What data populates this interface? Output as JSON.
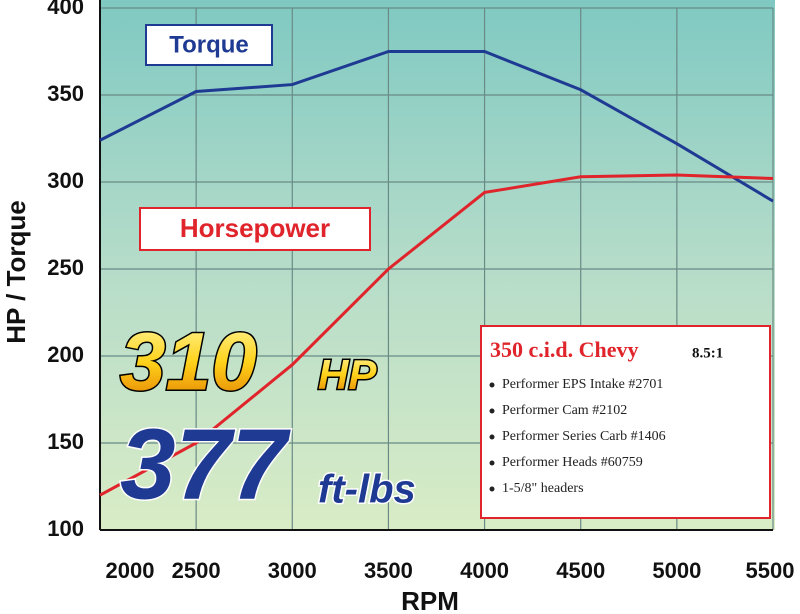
{
  "chart_data": {
    "type": "line",
    "x_label": "RPM",
    "y_label": "HP / Torque",
    "x": [
      2000,
      2500,
      3000,
      3500,
      4000,
      4500,
      5000,
      5500
    ],
    "series": [
      {
        "name": "Torque",
        "color": "#1f3a93",
        "values": [
          324,
          352,
          356,
          375,
          375,
          353,
          322,
          289
        ]
      },
      {
        "name": "Horsepower",
        "color": "#e0242b",
        "values": [
          120,
          150,
          195,
          250,
          294,
          303,
          304,
          302
        ]
      }
    ],
    "xlim": [
      2000,
      5500
    ],
    "xticks": [
      2000,
      2500,
      3000,
      3500,
      4000,
      4500,
      5000,
      5500
    ],
    "ylim": [
      100,
      400
    ],
    "yticks": [
      100,
      150,
      200,
      250,
      300,
      350,
      400
    ],
    "grid": true,
    "annotations": {
      "hp_value": "310",
      "hp_unit": "HP",
      "torque_value": "377",
      "torque_unit": "ft-lbs"
    },
    "spec_box": {
      "title": "350 c.i.d. Chevy",
      "compression": "8.5:1",
      "items": [
        "Performer EPS Intake #2701",
        "Performer Cam #2102",
        "Performer Series Carb #1406",
        "Performer Heads #60759",
        "1-5/8\" headers"
      ]
    }
  }
}
